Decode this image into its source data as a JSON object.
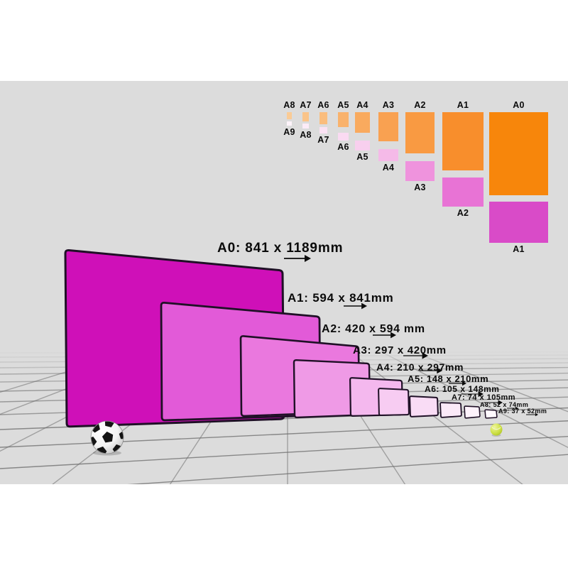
{
  "scene": {
    "canvas_background": "#ffffff",
    "background": "#dcdcdc",
    "grid_line_color": "#6f6f6f",
    "sheet_border_color": "#1f1026",
    "text_color": "#0b0b0b"
  },
  "size_chart": {
    "columns": [
      {
        "label": "A8",
        "orange_color": "#facb96",
        "half_label": "A9",
        "pink_color": "#fdf3fa"
      },
      {
        "label": "A7",
        "orange_color": "#fac489",
        "half_label": "A8",
        "pink_color": "#fcebf7"
      },
      {
        "label": "A6",
        "orange_color": "#fabd7d",
        "half_label": "A7",
        "pink_color": "#fbe2f4"
      },
      {
        "label": "A5",
        "orange_color": "#f9b26c",
        "half_label": "A6",
        "pink_color": "#fadaf2"
      },
      {
        "label": "A4",
        "orange_color": "#f9aa5e",
        "half_label": "A5",
        "pink_color": "#f8cfee"
      },
      {
        "label": "A3",
        "orange_color": "#f9a151",
        "half_label": "A4",
        "pink_color": "#f5bae8"
      },
      {
        "label": "A2",
        "orange_color": "#f99a42",
        "half_label": "A3",
        "pink_color": "#ef93dd"
      },
      {
        "label": "A1",
        "orange_color": "#f88e2c",
        "half_label": "A2",
        "pink_color": "#e873d5"
      },
      {
        "label": "A0",
        "orange_color": "#f7860b",
        "half_label": "A1",
        "pink_color": "#d94bc8"
      }
    ]
  },
  "sheets": [
    {
      "id": "A0",
      "label": "A0: 841 x 1189mm",
      "fill": "#cf10b8"
    },
    {
      "id": "A1",
      "label": "A1: 594 x 841mm",
      "fill": "#e25ad8"
    },
    {
      "id": "A2",
      "label": "A2: 420 x 594 mm",
      "fill": "#ea78de"
    },
    {
      "id": "A3",
      "label": "A3: 297 x 420mm",
      "fill": "#ef9ae6"
    },
    {
      "id": "A4",
      "label": "A4: 210 x 297mm",
      "fill": "#f4b8ee"
    },
    {
      "id": "A5",
      "label": "A5: 148 x 210mm",
      "fill": "#f7ccf2"
    },
    {
      "id": "A6",
      "label": "A6: 105 x 148mm",
      "fill": "#f9dcf5"
    },
    {
      "id": "A7",
      "label": "A7: 74 x 105mm",
      "fill": "#fbe9f8"
    },
    {
      "id": "A8",
      "label": "A8: 52 x 74mm",
      "fill": "#fdf2fb"
    },
    {
      "id": "A9",
      "label": "A9: 37 x 52mm",
      "fill": "#fef9fd"
    }
  ],
  "objects": [
    {
      "name": "soccer-ball",
      "color": "#ffffff",
      "patch_color": "#141414"
    },
    {
      "name": "tennis-ball",
      "color": "#c8dc3c"
    }
  ]
}
